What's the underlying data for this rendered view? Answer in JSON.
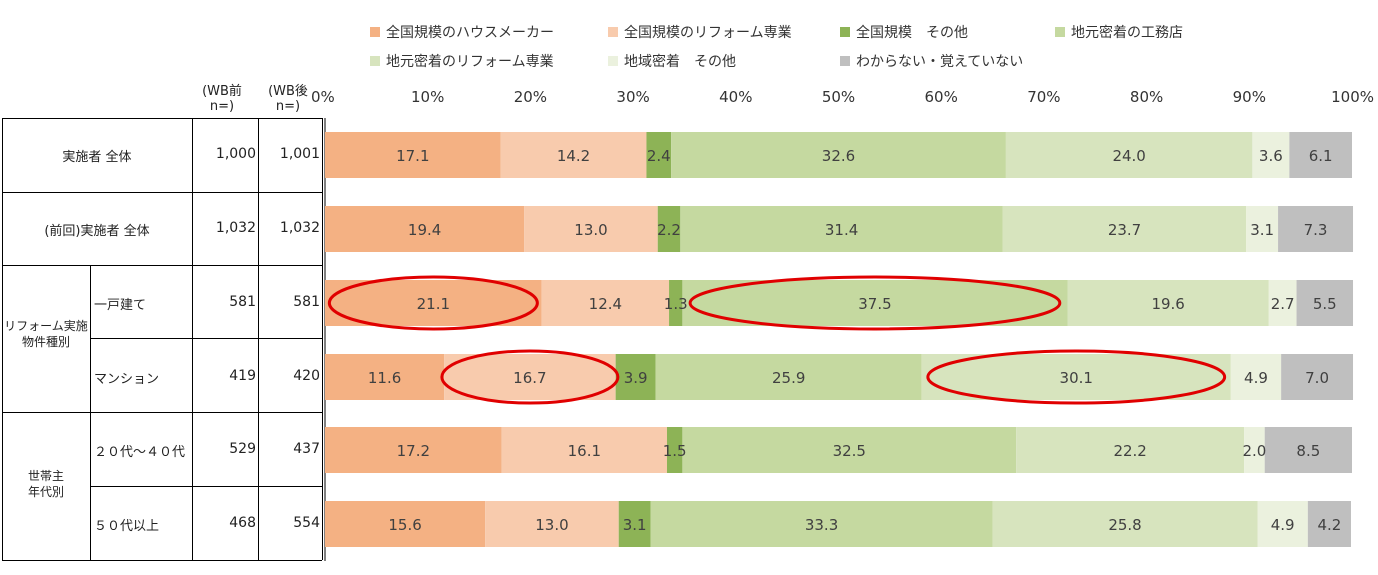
{
  "header": {
    "wb_before": "(WB前\nn=)",
    "wb_after": "(WB後\nn=)"
  },
  "legend": [
    {
      "label": "全国規模のハウスメーカー",
      "color": "#F4B183"
    },
    {
      "label": "全国規模のリフォーム専業",
      "color": "#F8CBAD"
    },
    {
      "label": "全国規模　その他",
      "color": "#8DB356"
    },
    {
      "label": "地元密着の工務店",
      "color": "#C5D9A0"
    },
    {
      "label": "地元密着のリフォーム専業",
      "color": "#D7E4BE"
    },
    {
      "label": "地域密着　その他",
      "color": "#EBF1DE"
    },
    {
      "label": "わからない・覚えていない",
      "color": "#BFBFBF"
    }
  ],
  "rows": [
    {
      "label": "実施者 全体",
      "before": "1,000",
      "after": "1,001"
    },
    {
      "label": "(前回)実施者 全体",
      "before": "1,032",
      "after": "1,032"
    },
    {
      "label": "一戸建て",
      "before": "581",
      "after": "581"
    },
    {
      "label": "マンション",
      "before": "419",
      "after": "420"
    },
    {
      "label": "２０代～４０代",
      "before": "529",
      "after": "437"
    },
    {
      "label": "５０代以上",
      "before": "468",
      "after": "554"
    }
  ],
  "groups": {
    "housing": "リフォーム実施\n物件種別",
    "age": "世帯主\n年代別"
  },
  "chart_data": {
    "type": "bar",
    "stacked": true,
    "orientation": "horizontal",
    "percent": true,
    "xlim": [
      0,
      100
    ],
    "x_tick_labels": [
      "0%",
      "10%",
      "20%",
      "30%",
      "40%",
      "50%",
      "60%",
      "70%",
      "80%",
      "90%",
      "100%"
    ],
    "categories": [
      "実施者 全体",
      "(前回)実施者 全体",
      "一戸建て",
      "マンション",
      "２０代～４０代",
      "５０代以上"
    ],
    "series": [
      {
        "name": "全国規模のハウスメーカー",
        "color": "#F4B183",
        "values": [
          17.1,
          19.4,
          21.1,
          11.6,
          17.2,
          15.6
        ]
      },
      {
        "name": "全国規模のリフォーム専業",
        "color": "#F8CBAD",
        "values": [
          14.2,
          13.0,
          12.4,
          16.7,
          16.1,
          13.0
        ]
      },
      {
        "name": "全国規模　その他",
        "color": "#8DB356",
        "values": [
          2.4,
          2.2,
          1.3,
          3.9,
          1.5,
          3.1
        ]
      },
      {
        "name": "地元密着の工務店",
        "color": "#C5D9A0",
        "values": [
          32.6,
          31.4,
          37.5,
          25.9,
          32.5,
          33.3
        ]
      },
      {
        "name": "地元密着のリフォーム専業",
        "color": "#D7E4BE",
        "values": [
          24.0,
          23.7,
          19.6,
          30.1,
          22.2,
          25.8
        ]
      },
      {
        "name": "地域密着　その他",
        "color": "#EBF1DE",
        "values": [
          3.6,
          3.1,
          2.7,
          4.9,
          2.0,
          4.9
        ]
      },
      {
        "name": "わからない・覚えていない",
        "color": "#BFBFBF",
        "values": [
          6.1,
          7.3,
          5.5,
          7.0,
          8.5,
          4.2
        ]
      }
    ],
    "highlights": [
      {
        "row": 2,
        "series": 0
      },
      {
        "row": 2,
        "series": 3
      },
      {
        "row": 3,
        "series": 1
      },
      {
        "row": 3,
        "series": 4
      }
    ],
    "highlight_color": "#E00000"
  }
}
